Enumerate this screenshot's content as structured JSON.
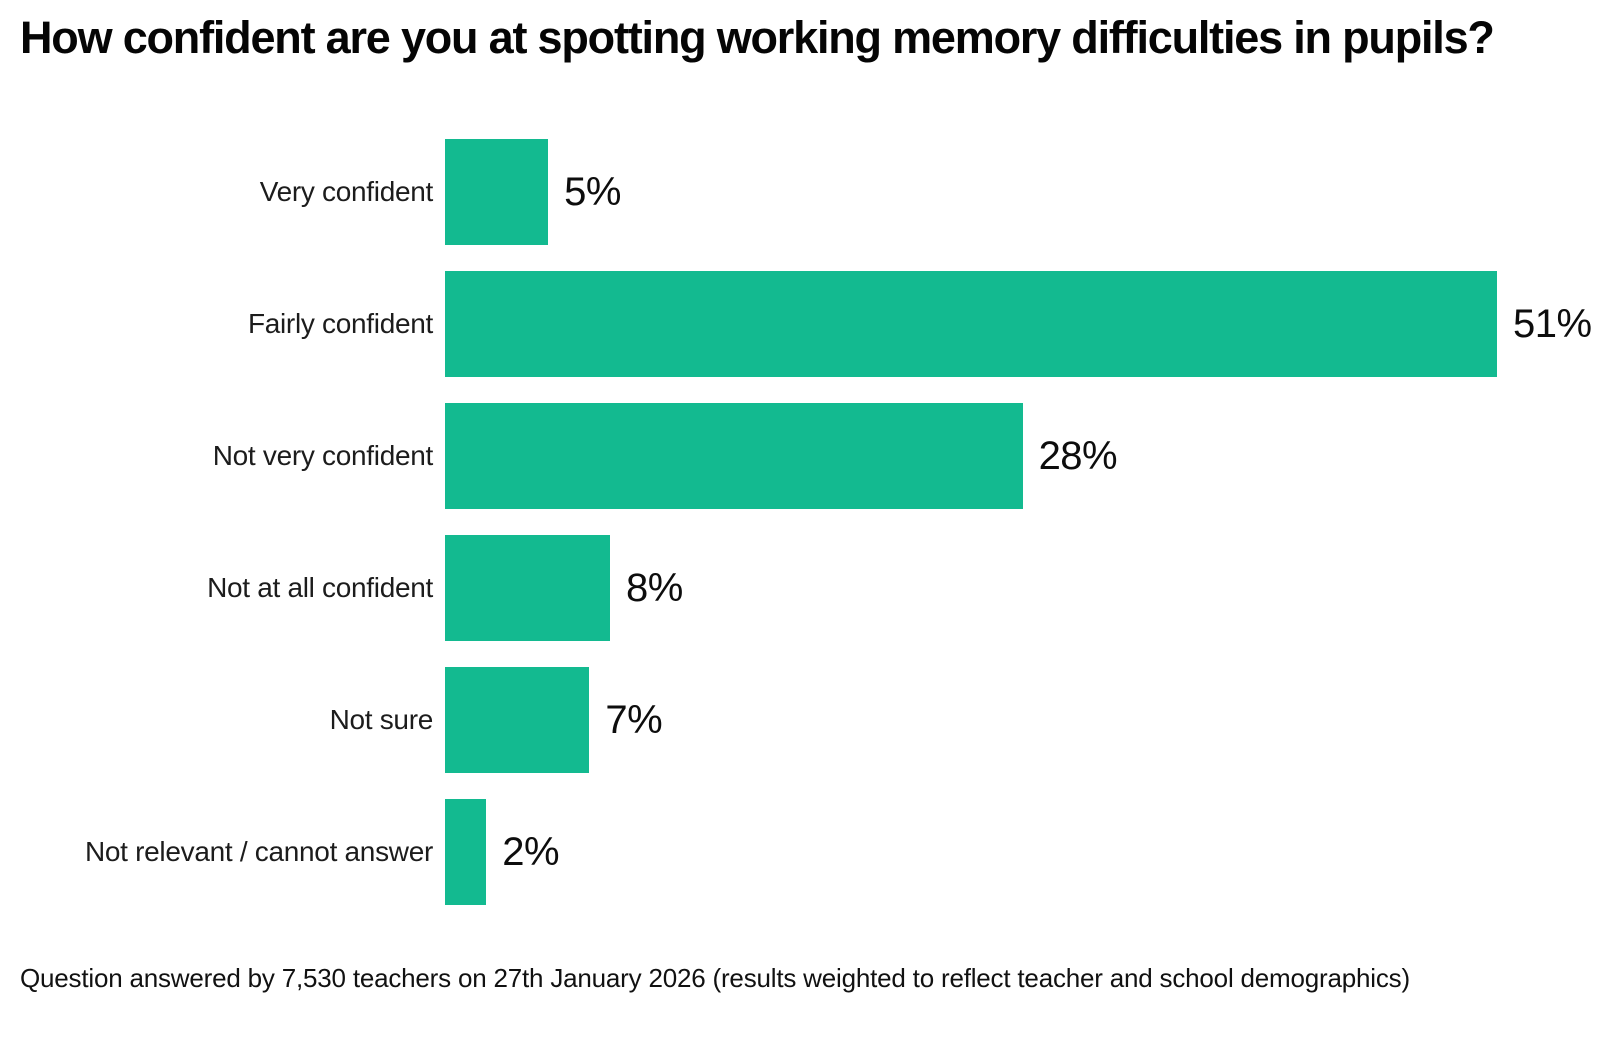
{
  "title": "How confident are you at spotting working memory difficulties in pupils?",
  "footer": "Question answered by 7,530 teachers on 27th January 2026 (results weighted to reflect teacher and school demographics)",
  "colors": {
    "bar": "#13ba90",
    "title_text": "#050505",
    "label_text": "#1c1c1c",
    "background": "#ffffff"
  },
  "chart_data": {
    "type": "bar",
    "orientation": "horizontal",
    "title": "How confident are you at spotting working memory difficulties in pupils?",
    "categories": [
      "Very confident",
      "Fairly confident",
      "Not very confident",
      "Not at all confident",
      "Not sure",
      "Not relevant / cannot answer"
    ],
    "values": [
      5,
      51,
      28,
      8,
      7,
      2
    ],
    "value_labels": [
      "5%",
      "51%",
      "28%",
      "8%",
      "7%",
      "2%"
    ],
    "xlabel": "",
    "ylabel": "",
    "xlim": [
      0,
      51
    ],
    "grid": false,
    "legend": "none",
    "data_labels": "end-of-bar",
    "footnote": "Question answered by 7,530 teachers on 27th January 2026 (results weighted to reflect teacher and school demographics)"
  }
}
